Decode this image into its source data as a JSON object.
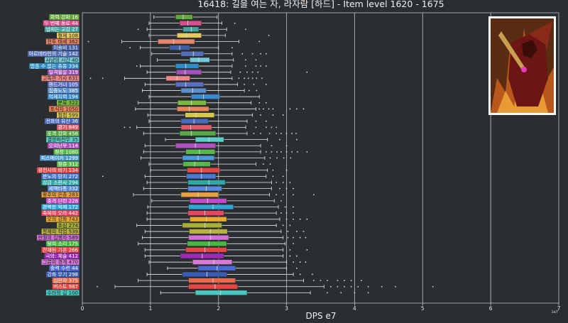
{
  "chart_data": {
    "type": "boxplot",
    "title": "16418: 길을 여는 자, 라자람 [하드] - Item level 1620 - 1675",
    "xlabel": "DPS e7",
    "xlim": [
      0,
      7
    ],
    "xticks": [
      0,
      1,
      2,
      3,
      4,
      5,
      6,
      7
    ],
    "x_multiplier": "1e7",
    "grid": "vertical",
    "categories": [
      {
        "label": "화력 강화 16",
        "color": "#62a83a",
        "q1": 1.37,
        "med": 1.48,
        "q3": 1.62,
        "lo": 1.05,
        "hi": 1.98,
        "outliers": []
      },
      {
        "label": "두 번째 동료 44",
        "color": "#d94f8c",
        "q1": 1.43,
        "med": 1.55,
        "q3": 1.75,
        "lo": 0.98,
        "hi": 2.05,
        "outliers": [
          2.24
        ]
      },
      {
        "label": "넘치는 교감 27",
        "color": "#45a6a0",
        "q1": 1.48,
        "med": 1.6,
        "q3": 1.71,
        "lo": 0.95,
        "hi": 2.12,
        "outliers": [
          0.82,
          2.4
        ]
      },
      {
        "label": "절제 108",
        "color": "#e6c95c",
        "q1": 1.39,
        "med": 1.53,
        "q3": 1.75,
        "lo": 0.98,
        "hi": 2.1,
        "outliers": [
          2.74
        ]
      },
      {
        "label": "전투 태세 362",
        "color": "#e8856a",
        "q1": 1.11,
        "med": 1.34,
        "q3": 1.65,
        "lo": 0.58,
        "hi": 2.3,
        "outliers": [
          0.09,
          2.6
        ]
      },
      {
        "label": "이슬비 131",
        "color": "#3f5fa6",
        "q1": 1.28,
        "med": 1.43,
        "q3": 1.58,
        "lo": 0.85,
        "hi": 2.0,
        "outliers": [
          0.7,
          2.2
        ]
      },
      {
        "label": "아르데타인의 기술 142",
        "color": "#5570b8",
        "q1": 1.45,
        "med": 1.63,
        "q3": 1.78,
        "lo": 1.02,
        "hi": 2.2,
        "outliers": [
          2.35,
          2.5,
          2.62,
          2.7
        ]
      },
      {
        "label": "사냥의 시간 40",
        "color": "#74c8d8",
        "q1": 1.58,
        "med": 1.71,
        "q3": 1.87,
        "lo": 1.1,
        "hi": 2.22,
        "outliers": [
          2.4,
          2.55
        ]
      },
      {
        "label": "멈출 수 없는 충동 334",
        "color": "#2f8cc8",
        "q1": 1.37,
        "med": 1.52,
        "q3": 1.71,
        "lo": 0.85,
        "hi": 2.2,
        "outliers": [
          0.8,
          2.4,
          2.55,
          2.62,
          2.7
        ]
      },
      {
        "label": "일격필살 319",
        "color": "#a054b8",
        "q1": 1.38,
        "med": 1.51,
        "q3": 1.75,
        "lo": 0.95,
        "hi": 2.18,
        "outliers": [
          2.32,
          2.42,
          2.5,
          2.58,
          3.3
        ]
      },
      {
        "label": "고독한 기사 631",
        "color": "#f08888",
        "q1": 1.23,
        "med": 1.39,
        "q3": 1.58,
        "lo": 0.62,
        "hi": 2.2,
        "outliers": [
          0.12,
          0.3,
          2.3,
          2.38,
          2.44,
          2.5,
          2.56,
          2.64
        ]
      },
      {
        "label": "핸드거너 105",
        "color": "#5a6ec2",
        "q1": 1.37,
        "med": 1.52,
        "q3": 1.78,
        "lo": 0.92,
        "hi": 2.28,
        "outliers": [
          2.38,
          2.52,
          2.7
        ]
      },
      {
        "label": "집중노도 385",
        "color": "#5a90cc",
        "q1": 1.45,
        "med": 1.62,
        "q3": 1.82,
        "lo": 0.88,
        "hi": 2.38,
        "outliers": [
          2.45,
          2.56
        ]
      },
      {
        "label": "억제지력 194",
        "color": "#3a8ad0",
        "q1": 1.6,
        "med": 1.78,
        "q3": 2.02,
        "lo": 0.98,
        "hi": 2.6,
        "outliers": []
      },
      {
        "label": "분류 322",
        "color": "#7ab83e",
        "q1": 1.4,
        "med": 1.6,
        "q3": 1.82,
        "lo": 0.82,
        "hi": 2.48,
        "outliers": [
          2.6,
          2.7
        ]
      },
      {
        "label": "포식자 1050",
        "color": "#e8855a",
        "q1": 1.39,
        "med": 1.57,
        "q3": 1.86,
        "lo": 0.78,
        "hi": 2.55,
        "outliers": [
          2.6,
          2.66,
          2.74,
          2.8,
          3.05,
          3.15,
          3.25
        ]
      },
      {
        "label": "점점 599",
        "color": "#d8c84a",
        "q1": 1.51,
        "med": 1.67,
        "q3": 1.94,
        "lo": 0.96,
        "hi": 2.5,
        "outliers": [
          2.62,
          2.8,
          2.95
        ]
      },
      {
        "label": "전화의 유산 36",
        "color": "#4a6ac0",
        "q1": 1.45,
        "med": 1.64,
        "q3": 1.85,
        "lo": 0.98,
        "hi": 2.42,
        "outliers": [
          2.55,
          2.7
        ]
      },
      {
        "label": "광기 849",
        "color": "#e05a6a",
        "q1": 1.45,
        "med": 1.59,
        "q3": 1.9,
        "lo": 0.8,
        "hi": 2.4,
        "outliers": [
          0.62,
          0.7,
          2.55,
          2.7,
          2.78,
          2.85
        ]
      },
      {
        "label": "포격 강화 456",
        "color": "#56a848",
        "q1": 1.43,
        "med": 1.6,
        "q3": 1.96,
        "lo": 0.9,
        "hi": 2.42,
        "outliers": [
          2.52,
          2.62,
          2.75,
          2.85,
          2.92,
          3.0,
          3.08,
          3.14
        ]
      },
      {
        "label": "결방파천무 35",
        "color": "#5ad0c8",
        "q1": 1.66,
        "med": 1.86,
        "q3": 2.08,
        "lo": 1.22,
        "hi": 2.72,
        "outliers": [
          2.9,
          3.15
        ]
      },
      {
        "label": "오의난무 114",
        "color": "#b052c0",
        "q1": 1.37,
        "med": 1.66,
        "q3": 1.96,
        "lo": 0.92,
        "hi": 2.62,
        "outliers": [
          2.78,
          3.0
        ]
      },
      {
        "label": "절정 1080",
        "color": "#56b848",
        "q1": 1.52,
        "med": 1.72,
        "q3": 1.95,
        "lo": 0.9,
        "hi": 2.62,
        "outliers": [
          2.7,
          2.78,
          2.86,
          2.92,
          3.0,
          3.08,
          3.16,
          3.3
        ]
      },
      {
        "label": "피스메이커 1299",
        "color": "#4a9ad8",
        "q1": 1.47,
        "med": 1.7,
        "q3": 1.94,
        "lo": 0.86,
        "hi": 2.68,
        "outliers": [
          2.76,
          2.86,
          2.96,
          3.06
        ]
      },
      {
        "label": "질증 312",
        "color": "#5ab84a",
        "q1": 1.48,
        "med": 1.65,
        "q3": 1.88,
        "lo": 0.98,
        "hi": 2.55,
        "outliers": [
          2.66,
          2.76
        ]
      },
      {
        "label": "광전사의 비기 134",
        "color": "#e84646",
        "q1": 1.54,
        "med": 1.75,
        "q3": 2.02,
        "lo": 1.0,
        "hi": 2.72,
        "outliers": [
          2.8,
          3.0
        ]
      },
      {
        "label": "분노의 망치 272",
        "color": "#4a7ad8",
        "q1": 1.53,
        "med": 1.75,
        "q3": 1.96,
        "lo": 0.92,
        "hi": 2.7,
        "outliers": [
          0.3,
          2.8,
          2.95
        ]
      },
      {
        "label": "상급 소환사 294",
        "color": "#2fa8a8",
        "q1": 1.55,
        "med": 1.86,
        "q3": 2.1,
        "lo": 0.95,
        "hi": 2.78,
        "outliers": [
          2.85,
          2.95,
          3.05
        ]
      },
      {
        "label": "세맥타통 332",
        "color": "#5a8ae0",
        "q1": 1.55,
        "med": 1.82,
        "q3": 2.05,
        "lo": 0.9,
        "hi": 2.78,
        "outliers": [
          2.9,
          3.0,
          3.1
        ]
      },
      {
        "label": "황후의 은총 283",
        "color": "#e8a040",
        "q1": 1.45,
        "med": 1.7,
        "q3": 2.0,
        "lo": 0.75,
        "hi": 2.75,
        "outliers": [
          2.85,
          2.95,
          3.1,
          3.4
        ]
      },
      {
        "label": "충격 단련 228",
        "color": "#c04ac8",
        "q1": 1.58,
        "med": 1.84,
        "q3": 2.12,
        "lo": 1.02,
        "hi": 2.82,
        "outliers": [
          2.92
        ]
      },
      {
        "label": "완벽한 억제 172",
        "color": "#2fa8d8",
        "q1": 1.56,
        "med": 1.92,
        "q3": 2.22,
        "lo": 0.96,
        "hi": 2.88,
        "outliers": [
          2.98,
          3.1
        ]
      },
      {
        "label": "축복의 오라 442",
        "color": "#e84660",
        "q1": 1.55,
        "med": 1.8,
        "q3": 2.08,
        "lo": 0.95,
        "hi": 2.85,
        "outliers": [
          2.92,
          3.0,
          3.1
        ]
      },
      {
        "label": "오의 강화 743",
        "color": "#e8a830",
        "q1": 1.58,
        "med": 1.82,
        "q3": 2.12,
        "lo": 0.95,
        "hi": 2.9,
        "outliers": [
          3.0,
          3.1,
          3.2,
          3.3
        ]
      },
      {
        "label": "초심 274",
        "color": "#a8b038",
        "q1": 1.47,
        "med": 1.8,
        "q3": 2.05,
        "lo": 0.8,
        "hi": 2.85,
        "outliers": [
          2.95,
          3.05
        ]
      },
      {
        "label": "할제의 작업 539",
        "color": "#b8b040",
        "q1": 1.57,
        "med": 1.88,
        "q3": 2.13,
        "lo": 0.92,
        "hi": 2.92,
        "outliers": [
          3.02,
          3.15,
          3.25
        ]
      },
      {
        "label": "만월의 집행자 589",
        "color": "#d070d8",
        "q1": 1.56,
        "med": 1.88,
        "q3": 2.15,
        "lo": 0.88,
        "hi": 2.95,
        "outliers": [
          3.02,
          3.1,
          3.2,
          3.28
        ]
      },
      {
        "label": "달의 소리 175",
        "color": "#46b840",
        "q1": 1.54,
        "med": 1.86,
        "q3": 2.12,
        "lo": 0.82,
        "hi": 2.98,
        "outliers": [
          3.1
        ]
      },
      {
        "label": "잔재된 기운 266",
        "color": "#e84646",
        "q1": 1.52,
        "med": 1.8,
        "q3": 2.12,
        "lo": 0.92,
        "hi": 2.95,
        "outliers": [
          3.05,
          3.3
        ]
      },
      {
        "label": "극의: 체술 412",
        "color": "#a02ab8",
        "q1": 1.44,
        "med": 1.76,
        "q3": 2.08,
        "lo": 0.92,
        "hi": 2.95,
        "outliers": [
          3.05,
          3.15
        ]
      },
      {
        "label": "그믐의 경계 470",
        "color": "#d878d8",
        "q1": 1.62,
        "med": 1.93,
        "q3": 2.2,
        "lo": 0.98,
        "hi": 3.0,
        "outliers": [
          3.1,
          3.2,
          3.28
        ]
      },
      {
        "label": "중력 수련 44",
        "color": "#4a6ad8",
        "q1": 1.7,
        "med": 1.98,
        "q3": 2.25,
        "lo": 1.25,
        "hi": 3.0,
        "outliers": [
          3.15
        ]
      },
      {
        "label": "강화 무기 298",
        "color": "#3a5ab8",
        "q1": 1.47,
        "med": 1.83,
        "q3": 2.12,
        "lo": 0.95,
        "hi": 3.1,
        "outliers": [
          3.2,
          3.38
        ]
      },
      {
        "label": "심판자 375",
        "color": "#e86a4a",
        "q1": 1.56,
        "med": 1.92,
        "q3": 2.25,
        "lo": 0.82,
        "hi": 3.25,
        "outliers": [
          3.4,
          3.5,
          3.6,
          3.75,
          3.85,
          3.95,
          4.1
        ]
      },
      {
        "label": "버스트 987",
        "color": "#e84640",
        "q1": 1.56,
        "med": 1.95,
        "q3": 2.28,
        "lo": 0.48,
        "hi": 3.55,
        "outliers": [
          0.22,
          3.65,
          3.75,
          3.85,
          3.95,
          4.05,
          4.2,
          4.4,
          4.6,
          5.15
        ]
      },
      {
        "label": "수라의 길 100",
        "color": "#4ac8c0",
        "q1": 1.66,
        "med": 2.03,
        "q3": 2.42,
        "lo": 1.15,
        "hi": 3.35,
        "outliers": [
          3.6,
          3.8,
          4.0,
          4.2
        ]
      }
    ]
  }
}
